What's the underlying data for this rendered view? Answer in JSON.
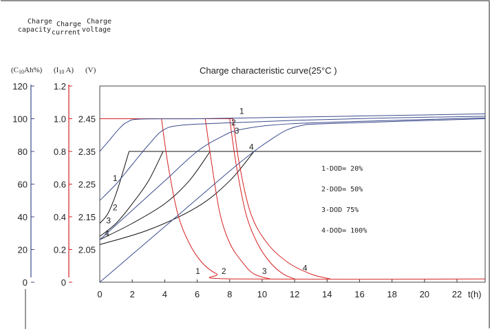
{
  "chart_data": {
    "type": "line",
    "title": "Charge characteristic curve(25°C )",
    "xlabel": "t(h)",
    "x_ticks": [
      0,
      2,
      4,
      6,
      8,
      10,
      12,
      14,
      16,
      18,
      20,
      22
    ],
    "xlim": [
      0,
      24.0
    ],
    "grid": false,
    "axes": [
      {
        "id": "capacity",
        "title_lines": [
          "Charge",
          "capacity"
        ],
        "unit": "(C10Ah%)",
        "unit_main": "(C",
        "unit_sub": "10",
        "unit_rest": "Ah%)",
        "ticks": [
          0,
          20,
          40,
          60,
          80,
          100,
          120
        ],
        "tick_labels": [
          "0",
          "20",
          "40",
          "60",
          "80",
          "100",
          "120"
        ],
        "ylim": [
          0,
          120
        ],
        "color": "#3a4a8c"
      },
      {
        "id": "current",
        "title_lines": [
          "Charge",
          "current"
        ],
        "unit": "(I10 A)",
        "unit_main": "(I",
        "unit_sub": "10",
        "unit_rest": " A)",
        "ticks": [
          0,
          0.2,
          0.4,
          0.6,
          0.8,
          1.0,
          1.2
        ],
        "tick_labels": [
          "0",
          "0.2",
          "0.4",
          "0.6",
          "0.8",
          "1.0",
          "1.2"
        ],
        "ylim": [
          0,
          1.2
        ],
        "color": "#d62020"
      },
      {
        "id": "voltage",
        "title_lines": [
          "Charge",
          "voltage"
        ],
        "unit": "(V)",
        "ticks": [
          2.05,
          2.15,
          2.25,
          2.35,
          2.45
        ],
        "tick_labels": [
          "2.05",
          "2.15",
          "2.25",
          "2.35",
          "2.45"
        ],
        "tick_fracs": [
          0.1667,
          0.3333,
          0.5,
          0.6667,
          0.8333
        ],
        "color": "#222222"
      }
    ],
    "series": [
      {
        "label": "1",
        "kind": "voltage",
        "color": "#111111",
        "points": [
          [
            0,
            2.13
          ],
          [
            0.5,
            2.16
          ],
          [
            1.0,
            2.22
          ],
          [
            1.5,
            2.3
          ],
          [
            1.8,
            2.35
          ],
          [
            23.5,
            2.35
          ]
        ],
        "label_pos": [
          0.8,
          2.26
        ]
      },
      {
        "label": "2",
        "kind": "voltage",
        "color": "#111111",
        "points": [
          [
            0,
            2.09
          ],
          [
            1.0,
            2.13
          ],
          [
            2.0,
            2.19
          ],
          [
            3.0,
            2.26
          ],
          [
            3.9,
            2.35
          ]
        ],
        "label_pos": [
          0.8,
          2.17
        ]
      },
      {
        "label": "3",
        "kind": "voltage",
        "color": "#111111",
        "points": [
          [
            0,
            2.08
          ],
          [
            2.0,
            2.13
          ],
          [
            4.0,
            2.19
          ],
          [
            5.5,
            2.26
          ],
          [
            6.8,
            2.35
          ]
        ],
        "label_pos": [
          0.4,
          2.13
        ]
      },
      {
        "label": "4",
        "kind": "voltage",
        "color": "#111111",
        "points": [
          [
            0,
            2.065
          ],
          [
            3.0,
            2.11
          ],
          [
            6.0,
            2.18
          ],
          [
            8.0,
            2.26
          ],
          [
            9.5,
            2.35
          ]
        ],
        "label_pos": [
          0.3,
          2.09
        ]
      },
      {
        "label": "1",
        "kind": "current",
        "color": "#d62020",
        "points": [
          [
            0,
            1.0
          ],
          [
            3.8,
            1.0
          ],
          [
            4.2,
            0.72
          ],
          [
            4.8,
            0.42
          ],
          [
            5.5,
            0.24
          ],
          [
            6.3,
            0.12
          ],
          [
            7.2,
            0.05
          ],
          [
            8.2,
            0.02
          ],
          [
            24.0,
            0.02
          ]
        ],
        "label_pos": [
          5.9,
          0.05
        ]
      },
      {
        "label": "2",
        "kind": "current",
        "color": "#d62020",
        "points": [
          [
            0,
            1.0
          ],
          [
            6.5,
            1.0
          ],
          [
            6.9,
            0.72
          ],
          [
            7.4,
            0.42
          ],
          [
            8.0,
            0.24
          ],
          [
            8.8,
            0.12
          ],
          [
            9.5,
            0.05
          ],
          [
            10.5,
            0.02
          ]
        ],
        "label_pos": [
          7.5,
          0.05
        ]
      },
      {
        "label": "3",
        "kind": "current",
        "color": "#d62020",
        "points": [
          [
            0,
            1.0
          ],
          [
            8.0,
            1.0
          ],
          [
            8.4,
            0.72
          ],
          [
            9.0,
            0.42
          ],
          [
            9.7,
            0.24
          ],
          [
            10.5,
            0.12
          ],
          [
            11.3,
            0.05
          ],
          [
            12.0,
            0.02
          ]
        ],
        "label_pos": [
          10.0,
          0.05
        ]
      },
      {
        "label": "4",
        "kind": "current",
        "color": "#d62020",
        "points": [
          [
            0,
            1.0
          ],
          [
            8.2,
            1.0
          ],
          [
            8.6,
            0.72
          ],
          [
            9.3,
            0.42
          ],
          [
            10.3,
            0.24
          ],
          [
            11.6,
            0.12
          ],
          [
            13.0,
            0.05
          ],
          [
            14.2,
            0.02
          ]
        ],
        "label_pos": [
          12.5,
          0.07
        ]
      },
      {
        "label": "1",
        "kind": "capacity",
        "color": "#3a4a8c",
        "points": [
          [
            0,
            80
          ],
          [
            0.6,
            87
          ],
          [
            1.2,
            94
          ],
          [
            1.7,
            98
          ],
          [
            2.5,
            99.8
          ],
          [
            6,
            100
          ],
          [
            12,
            101
          ],
          [
            18,
            102
          ],
          [
            24.0,
            103
          ]
        ],
        "label_pos": [
          8.6,
          103
        ]
      },
      {
        "label": "2",
        "kind": "capacity",
        "color": "#3a4a8c",
        "points": [
          [
            0,
            50
          ],
          [
            1.0,
            60
          ],
          [
            2.0,
            72
          ],
          [
            3.0,
            84
          ],
          [
            3.9,
            93
          ],
          [
            5,
            96
          ],
          [
            8,
            97.5
          ],
          [
            12,
            99
          ],
          [
            18,
            100.5
          ],
          [
            24.0,
            101.5
          ]
        ],
        "label_pos": [
          8.1,
          96
        ]
      },
      {
        "label": "3",
        "kind": "capacity",
        "color": "#3a4a8c",
        "points": [
          [
            0,
            26
          ],
          [
            2.0,
            44
          ],
          [
            4.0,
            62
          ],
          [
            6.0,
            80
          ],
          [
            7.5,
            89
          ],
          [
            8.5,
            93
          ],
          [
            10.5,
            96
          ],
          [
            14,
            97.8
          ],
          [
            24.0,
            100.5
          ]
        ],
        "label_pos": [
          8.3,
          91
        ]
      },
      {
        "label": "4",
        "kind": "capacity",
        "color": "#3a4a8c",
        "points": [
          [
            0,
            0
          ],
          [
            2.0,
            17
          ],
          [
            4.0,
            34
          ],
          [
            6.0,
            51
          ],
          [
            8.0,
            68
          ],
          [
            9.5,
            80
          ],
          [
            10.5,
            87
          ],
          [
            11.5,
            93
          ],
          [
            12.5,
            96
          ],
          [
            14,
            97
          ],
          [
            24.0,
            100
          ]
        ],
        "label_pos": [
          9.2,
          81
        ]
      }
    ],
    "legend_position": "right",
    "legend": [
      "1-DOD= 20%",
      "2-DOD= 50%",
      "3-DOD 75%",
      "4-DOD= 100%"
    ]
  }
}
